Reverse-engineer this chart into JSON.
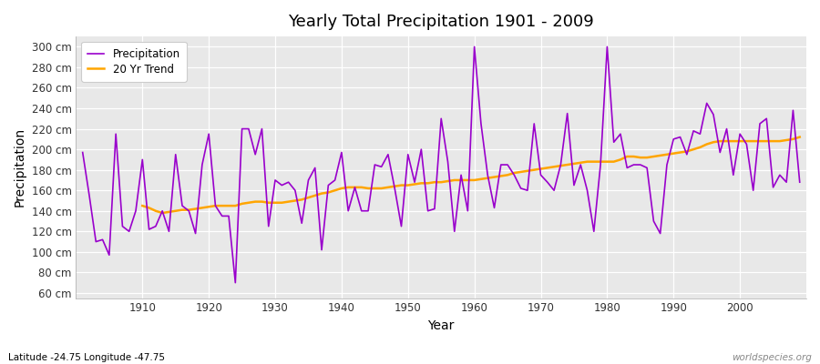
{
  "title": "Yearly Total Precipitation 1901 - 2009",
  "xlabel": "Year",
  "ylabel": "Precipitation",
  "subtitle": "Latitude -24.75 Longitude -47.75",
  "watermark": "worldspecies.org",
  "bg_color": "#ffffff",
  "plot_bg_color": "#e8e8e8",
  "precip_color": "#9900cc",
  "trend_color": "#ffa500",
  "ylim": [
    55,
    310
  ],
  "yticks": [
    60,
    80,
    100,
    120,
    140,
    160,
    180,
    200,
    220,
    240,
    260,
    280,
    300
  ],
  "years": [
    1901,
    1902,
    1903,
    1904,
    1905,
    1906,
    1907,
    1908,
    1909,
    1910,
    1911,
    1912,
    1913,
    1914,
    1915,
    1916,
    1917,
    1918,
    1919,
    1920,
    1921,
    1922,
    1923,
    1924,
    1925,
    1926,
    1927,
    1928,
    1929,
    1930,
    1931,
    1932,
    1933,
    1934,
    1935,
    1936,
    1937,
    1938,
    1939,
    1940,
    1941,
    1942,
    1943,
    1944,
    1945,
    1946,
    1947,
    1948,
    1949,
    1950,
    1951,
    1952,
    1953,
    1954,
    1955,
    1956,
    1957,
    1958,
    1959,
    1960,
    1961,
    1962,
    1963,
    1964,
    1965,
    1966,
    1967,
    1968,
    1969,
    1970,
    1971,
    1972,
    1973,
    1974,
    1975,
    1976,
    1977,
    1978,
    1979,
    1980,
    1981,
    1982,
    1983,
    1984,
    1985,
    1986,
    1987,
    1988,
    1989,
    1990,
    1991,
    1992,
    1993,
    1994,
    1995,
    1996,
    1997,
    1998,
    1999,
    2000,
    2001,
    2002,
    2003,
    2004,
    2005,
    2006,
    2007,
    2008,
    2009
  ],
  "precipitation": [
    197,
    155,
    110,
    112,
    97,
    215,
    125,
    120,
    140,
    190,
    122,
    125,
    140,
    120,
    195,
    145,
    140,
    118,
    185,
    215,
    145,
    135,
    135,
    70,
    220,
    220,
    195,
    220,
    125,
    170,
    165,
    168,
    160,
    128,
    170,
    182,
    102,
    165,
    170,
    197,
    140,
    163,
    140,
    140,
    185,
    183,
    195,
    162,
    125,
    195,
    168,
    200,
    140,
    142,
    230,
    188,
    120,
    175,
    140,
    300,
    225,
    175,
    143,
    185,
    185,
    175,
    162,
    160,
    225,
    175,
    168,
    160,
    185,
    235,
    165,
    185,
    160,
    120,
    185,
    300,
    207,
    215,
    182,
    185,
    185,
    182,
    130,
    118,
    185,
    210,
    212,
    195,
    218,
    215,
    245,
    234,
    197,
    220,
    175,
    215,
    205,
    160,
    225,
    230,
    163,
    175,
    168,
    238,
    168
  ],
  "trend": [
    null,
    null,
    null,
    null,
    null,
    null,
    null,
    null,
    null,
    145,
    143,
    140,
    138,
    139,
    140,
    141,
    141,
    142,
    143,
    144,
    145,
    145,
    145,
    145,
    147,
    148,
    149,
    149,
    148,
    148,
    148,
    149,
    150,
    151,
    153,
    155,
    157,
    158,
    160,
    162,
    163,
    163,
    163,
    162,
    162,
    162,
    163,
    164,
    165,
    165,
    166,
    167,
    167,
    168,
    168,
    169,
    170,
    170,
    170,
    170,
    171,
    172,
    173,
    174,
    175,
    177,
    178,
    179,
    180,
    181,
    182,
    183,
    184,
    185,
    186,
    187,
    188,
    188,
    188,
    188,
    188,
    190,
    193,
    193,
    192,
    192,
    193,
    194,
    195,
    196,
    197,
    198,
    200,
    202,
    205,
    207,
    208,
    208,
    208,
    208,
    208,
    208,
    208,
    208,
    208,
    208,
    209,
    210,
    212
  ]
}
